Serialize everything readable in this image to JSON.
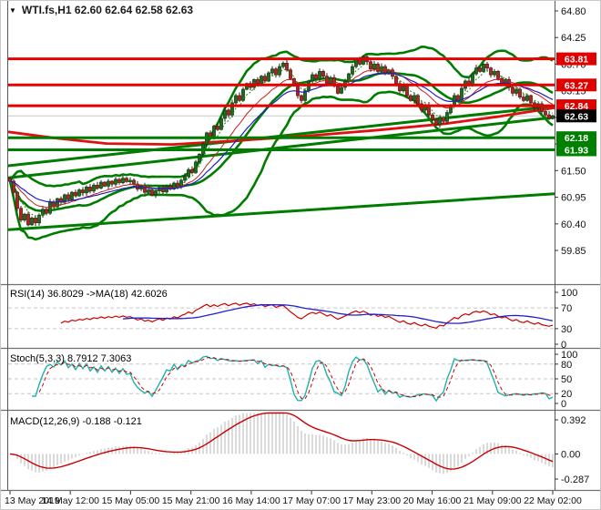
{
  "window": {
    "title": "WTI.fs,H1  62.60 62.64 62.58 62.63",
    "dropdown_icon": "symbol-dropdown"
  },
  "chart_data": {
    "type": "candlestick",
    "symbol": "WTI.fs",
    "timeframe": "H1",
    "title": "WTI.fs,H1 62.60 62.64 62.58 62.63",
    "last_ohlc": {
      "open": 62.6,
      "high": 62.64,
      "low": 62.58,
      "close": 62.63
    },
    "y_axis": {
      "tick_labels": [
        "64.80",
        "64.25",
        "63.70",
        "63.15",
        "62.60",
        "62.05",
        "61.50",
        "60.95",
        "60.40",
        "59.85"
      ],
      "tick_values": [
        64.8,
        64.25,
        63.7,
        63.15,
        62.6,
        62.05,
        61.5,
        60.95,
        60.4,
        59.85
      ],
      "range": [
        59.85,
        64.8
      ]
    },
    "x_axis": {
      "labels": [
        "13 May 2019",
        "14 May 12:00",
        "15 May 05:00",
        "15 May 21:00",
        "16 May 14:00",
        "17 May 07:00",
        "17 May 23:00",
        "20 May 16:00",
        "21 May 09:00",
        "22 May 02:00"
      ]
    },
    "levels": [
      {
        "price": 63.81,
        "label": "63.81",
        "type": "resistance",
        "color": "#e60000"
      },
      {
        "price": 63.27,
        "label": "63.27",
        "type": "resistance",
        "color": "#e60000"
      },
      {
        "price": 62.84,
        "label": "62.84",
        "type": "resistance",
        "color": "#e60000"
      },
      {
        "price": 62.18,
        "label": "62.18",
        "type": "support",
        "color": "#007c00"
      },
      {
        "price": 61.93,
        "label": "61.93",
        "type": "support",
        "color": "#007c00"
      }
    ],
    "current_price": {
      "value": 62.63,
      "label": "62.63",
      "badge_color": "#000000",
      "line_color": "#c8c8c8"
    },
    "trendlines": [
      {
        "from_frac": 0.0,
        "from_price": 60.28,
        "to_frac": 1.0,
        "to_price": 61.02
      },
      {
        "from_frac": 0.0,
        "from_price": 61.6,
        "to_frac": 0.99,
        "to_price": 62.82
      },
      {
        "from_frac": 0.0,
        "from_price": 61.35,
        "to_frac": 1.0,
        "to_price": 62.6
      }
    ],
    "red_ma_anchors": [
      [
        0,
        62.3
      ],
      [
        0.08,
        62.18
      ],
      [
        0.18,
        62.06
      ],
      [
        0.3,
        62.04
      ],
      [
        0.42,
        62.12
      ],
      [
        0.55,
        62.22
      ],
      [
        0.68,
        62.34
      ],
      [
        0.8,
        62.47
      ],
      [
        0.9,
        62.62
      ],
      [
        1,
        62.8
      ]
    ],
    "bollinger": {
      "period": 20,
      "deviation": 2
    },
    "moving_averages": {
      "fast_dotted_green": 5,
      "mid_red": 13,
      "slow_blue": 21
    },
    "candles": {
      "count": 150,
      "closes": [
        61.28,
        61.05,
        60.72,
        60.48,
        60.6,
        60.38,
        60.52,
        60.42,
        60.58,
        60.7,
        60.62,
        60.85,
        60.75,
        60.92,
        60.85,
        61.0,
        60.9,
        61.05,
        60.98,
        61.1,
        61.04,
        61.16,
        61.08,
        61.2,
        61.14,
        61.26,
        61.18,
        61.28,
        61.22,
        61.32,
        61.25,
        61.34,
        61.27,
        61.3,
        61.22,
        61.12,
        61.18,
        61.05,
        61.1,
        61.0,
        61.08,
        61.15,
        61.06,
        61.18,
        61.12,
        61.24,
        61.18,
        61.3,
        61.38,
        61.52,
        61.46,
        61.68,
        61.84,
        62.05,
        62.28,
        62.18,
        62.42,
        62.35,
        62.58,
        62.75,
        62.65,
        62.9,
        63.05,
        62.95,
        63.18,
        63.3,
        63.22,
        63.38,
        63.3,
        63.45,
        63.35,
        63.52,
        63.6,
        63.48,
        63.65,
        63.72,
        63.58,
        63.4,
        63.25,
        63.05,
        62.95,
        63.15,
        63.35,
        63.48,
        63.4,
        63.55,
        63.45,
        63.3,
        63.42,
        63.25,
        63.1,
        63.22,
        63.35,
        63.5,
        63.65,
        63.8,
        63.7,
        63.85,
        63.75,
        63.6,
        63.7,
        63.55,
        63.65,
        63.5,
        63.58,
        63.45,
        63.3,
        63.15,
        63.25,
        63.05,
        62.95,
        63.05,
        62.88,
        62.75,
        62.85,
        62.65,
        62.55,
        62.45,
        62.6,
        62.52,
        62.7,
        62.85,
        63.05,
        62.95,
        63.2,
        63.35,
        63.28,
        63.5,
        63.62,
        63.55,
        63.7,
        63.62,
        63.48,
        63.55,
        63.4,
        63.3,
        63.38,
        63.22,
        63.1,
        63.18,
        63.02,
        62.95,
        63.05,
        62.9,
        62.8,
        62.88,
        62.72,
        62.65,
        62.58,
        62.63
      ]
    },
    "panels": {
      "rsi": {
        "label": "RSI(14) 36.8029  ->MA(18) 42.6026",
        "period": 14,
        "ma_period": 18,
        "last_value": 36.8029,
        "ma_last_value": 42.6026,
        "tick_labels": [
          "100",
          "70",
          "30",
          "0"
        ],
        "tick_values": [
          100,
          70,
          30,
          0
        ],
        "dashed_levels": [
          70,
          30
        ],
        "range": [
          0,
          100
        ]
      },
      "stoch": {
        "label": "Stoch(5,3,3) 8.7912 7.3063",
        "k_period": 5,
        "d_period": 3,
        "slowing": 3,
        "last_k": 8.7912,
        "last_d": 7.3063,
        "tick_labels": [
          "100",
          "80",
          "50",
          "20",
          "0"
        ],
        "tick_values": [
          100,
          80,
          50,
          20,
          0
        ],
        "dashed_levels": [
          80,
          50,
          20
        ],
        "range": [
          0,
          100
        ]
      },
      "macd": {
        "label": "MACD(12,26,9) -0.188 -0.121",
        "fast": 12,
        "slow": 26,
        "signal": 9,
        "last_value": -0.188,
        "last_signal": -0.121,
        "tick_labels": [
          "0.392",
          "0.00",
          "-0.287"
        ],
        "tick_values": [
          0.392,
          0.0,
          -0.287
        ]
      }
    },
    "colors": {
      "up_candle": "#1e6b1e",
      "up_border": "#123f12",
      "down_candle": "#b22222",
      "down_border": "#6e1212",
      "wick": "#222222",
      "band_green": "#007c00",
      "level_red": "#e60000",
      "badge_red": "#e00000",
      "badge_green": "#008000",
      "badge_black": "#000000",
      "ma_blue": "#2020c0",
      "ma_red_thin": "#c02020",
      "ma_green_dotted": "#109010",
      "rsi_line": "#cc0000",
      "rsi_ma": "#2020cc",
      "stoch_k": "#20b2aa",
      "stoch_d": "#cc0000",
      "macd_hist": "#b4b4b4",
      "macd_signal": "#cc0000",
      "dashed_grid": "#c6c6c6",
      "separator": "#6f6f6f"
    }
  }
}
